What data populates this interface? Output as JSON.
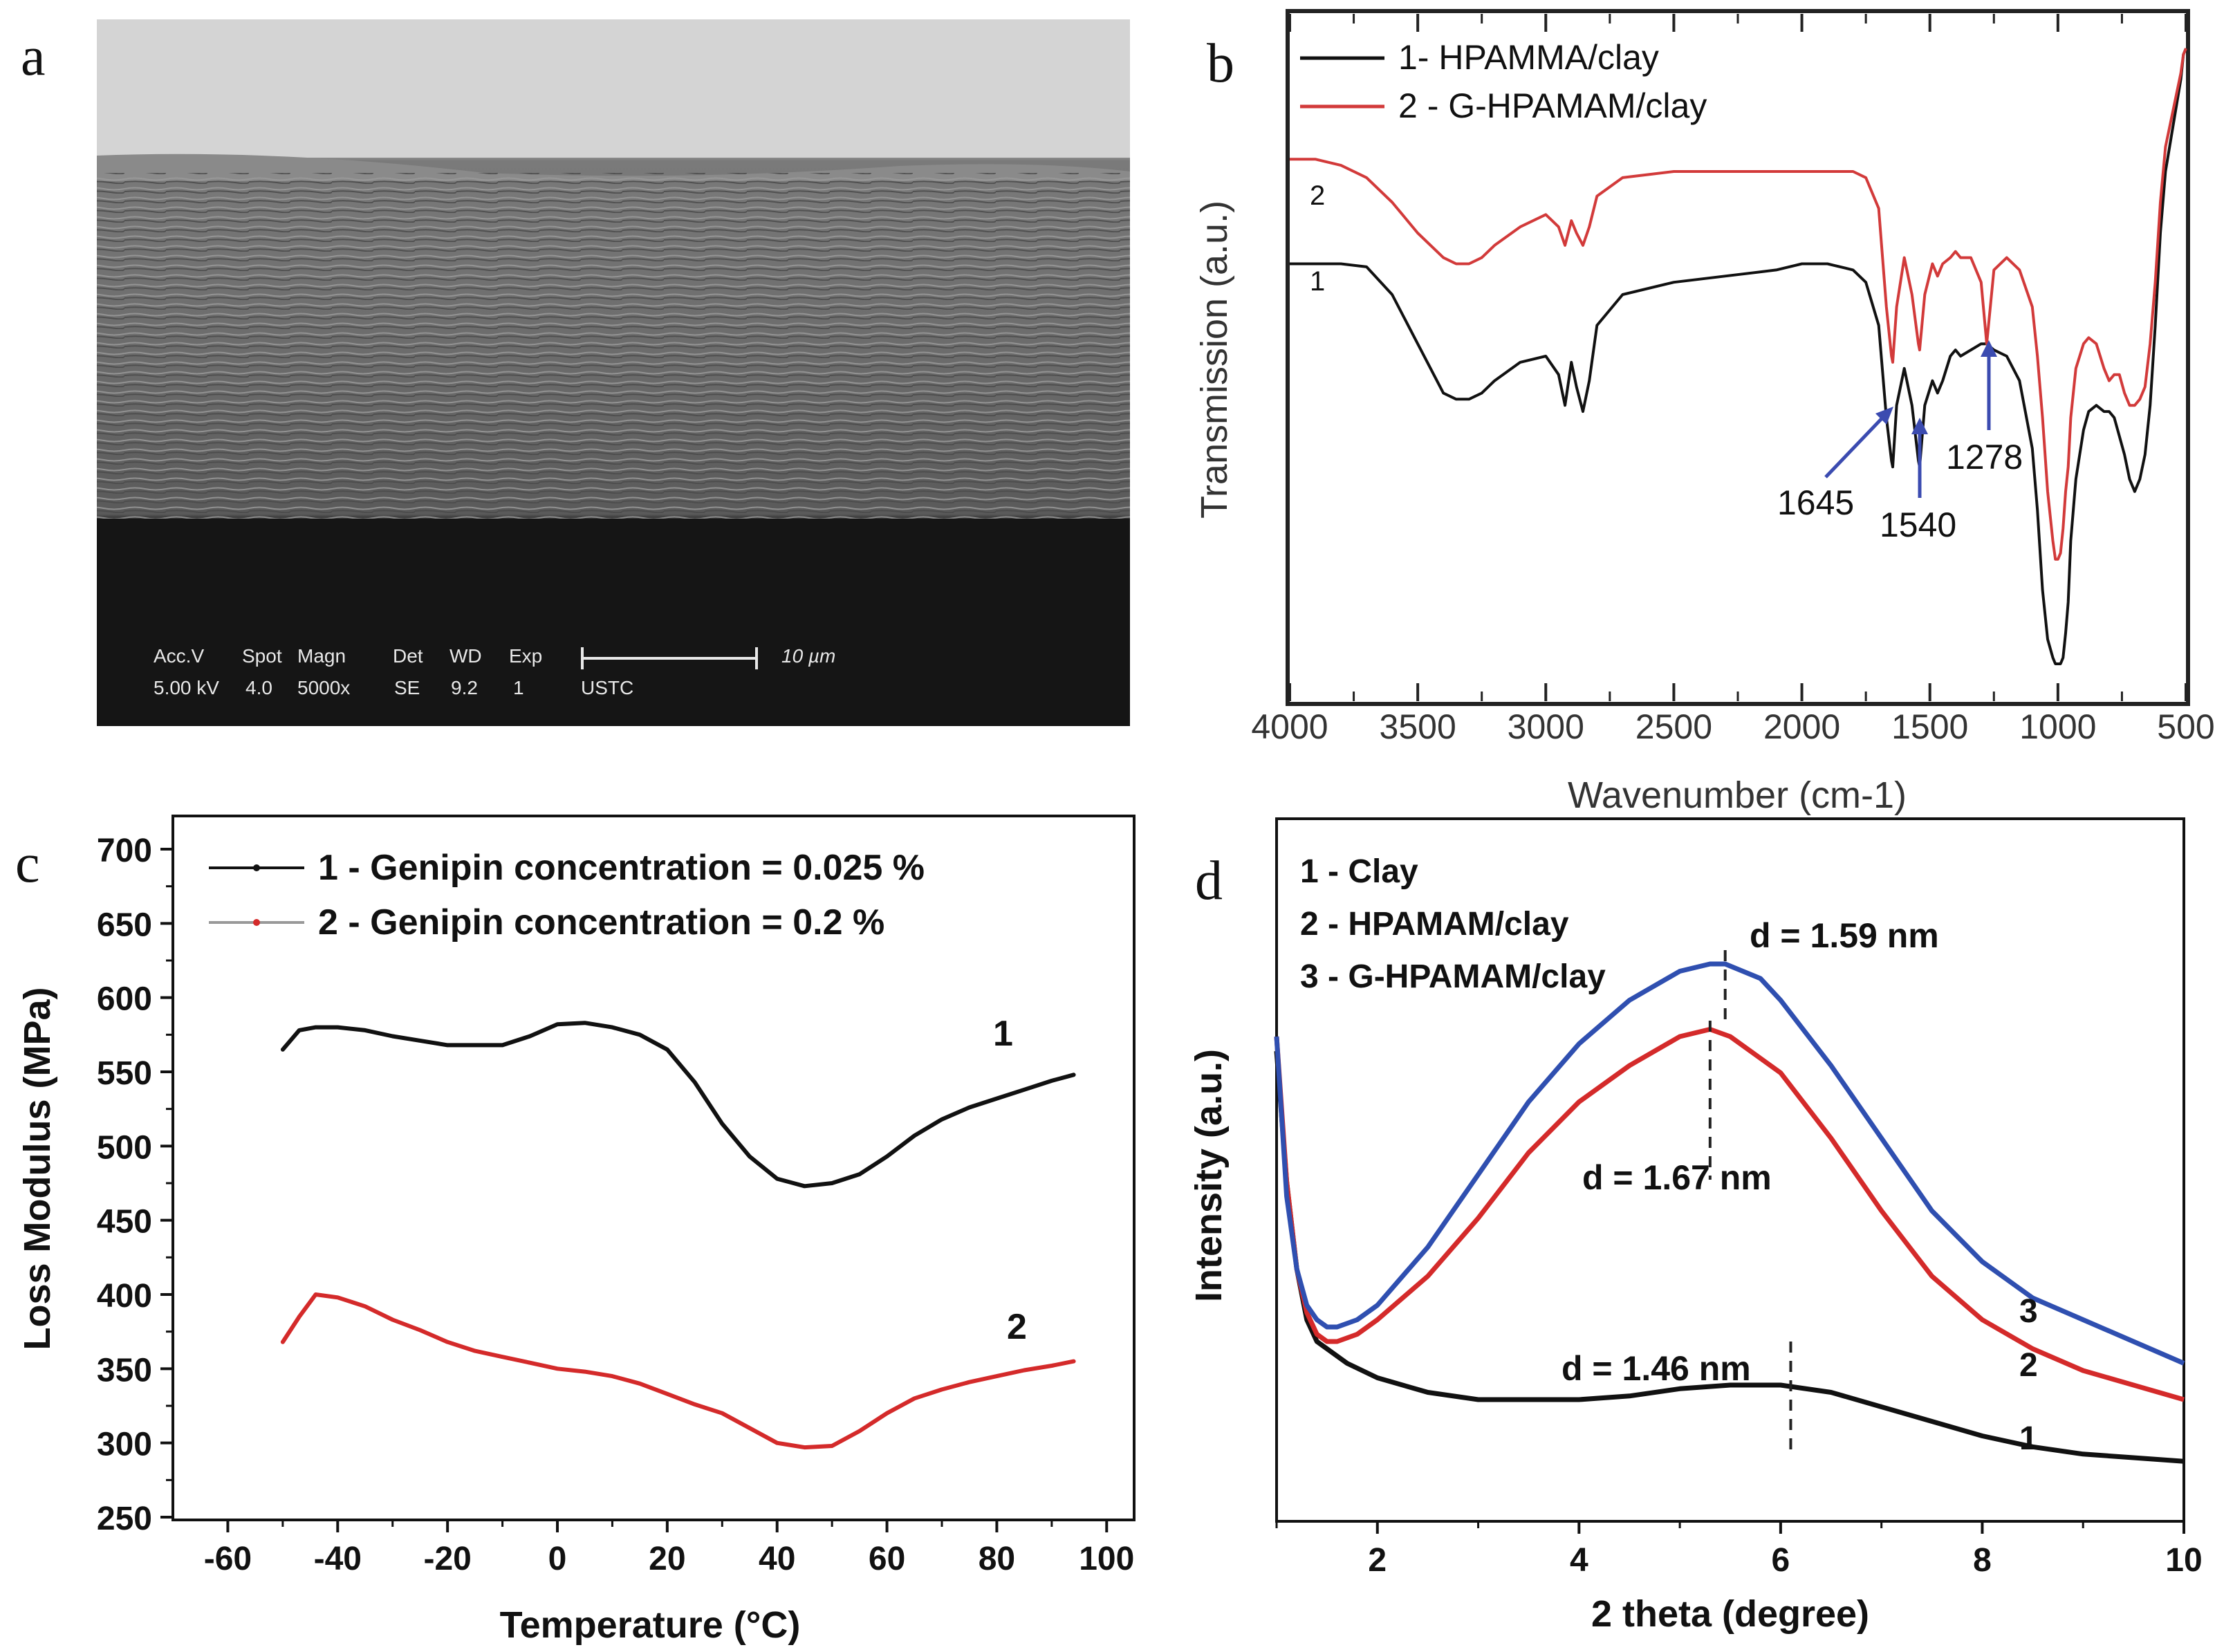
{
  "panel_labels": {
    "a": "a",
    "b": "b",
    "c": "c",
    "d": "d"
  },
  "sem": {
    "header": [
      "Acc.V",
      "Spot",
      "Magn",
      "Det",
      "WD",
      "Exp"
    ],
    "values": [
      "5.00 kV",
      "4.0",
      "5000x",
      "SE",
      "9.2",
      "1"
    ],
    "scalebar_label": "10 µm",
    "institution": "USTC"
  },
  "colors": {
    "black": "#111111",
    "red": "#d42a2a",
    "blue": "#2f4fb0",
    "ir_red": "#d23a3a",
    "annotation_blue": "#3b4bb0"
  },
  "chart_data": [
    {
      "id": "b",
      "type": "line",
      "title": "",
      "xlabel": "Wavenumber (cm-1)",
      "ylabel": "Transmission (a.u.)",
      "xlim": [
        4000,
        500
      ],
      "ylim": [
        0,
        1
      ],
      "xticks": [
        4000,
        3500,
        3000,
        2500,
        2000,
        1500,
        1000,
        500
      ],
      "legend": [
        "1- HPAMMA/clay",
        "2 - G-HPAMAM/clay"
      ],
      "legend_position": "top-left",
      "curve_labels": [
        "1",
        "2"
      ],
      "annotations": [
        "1645",
        "1540",
        "1278"
      ],
      "annotation_x": [
        1645,
        1540,
        1278
      ],
      "series": [
        {
          "name": "1- HPAMMA/clay",
          "x": [
            4000,
            3900,
            3800,
            3700,
            3600,
            3500,
            3400,
            3350,
            3300,
            3250,
            3200,
            3100,
            3000,
            2950,
            2925,
            2900,
            2880,
            2855,
            2830,
            2800,
            2700,
            2500,
            2300,
            2100,
            2000,
            1900,
            1800,
            1750,
            1700,
            1670,
            1650,
            1645,
            1630,
            1600,
            1570,
            1545,
            1540,
            1520,
            1490,
            1470,
            1450,
            1420,
            1400,
            1380,
            1340,
            1300,
            1278,
            1250,
            1200,
            1150,
            1100,
            1080,
            1060,
            1040,
            1020,
            1010,
            1000,
            990,
            980,
            970,
            960,
            950,
            930,
            900,
            880,
            850,
            820,
            800,
            780,
            760,
            740,
            720,
            700,
            680,
            660,
            640,
            620,
            600,
            580,
            560,
            540,
            520,
            510,
            500
          ],
          "y": [
            0.65,
            0.65,
            0.65,
            0.645,
            0.6,
            0.52,
            0.44,
            0.43,
            0.43,
            0.44,
            0.46,
            0.49,
            0.5,
            0.47,
            0.42,
            0.49,
            0.45,
            0.41,
            0.46,
            0.55,
            0.6,
            0.62,
            0.63,
            0.64,
            0.65,
            0.65,
            0.64,
            0.62,
            0.55,
            0.4,
            0.33,
            0.32,
            0.42,
            0.48,
            0.42,
            0.33,
            0.32,
            0.42,
            0.46,
            0.44,
            0.46,
            0.5,
            0.51,
            0.5,
            0.51,
            0.52,
            0.52,
            0.51,
            0.5,
            0.46,
            0.35,
            0.25,
            0.12,
            0.04,
            0.01,
            0.0,
            0.0,
            0.0,
            0.01,
            0.05,
            0.1,
            0.2,
            0.3,
            0.38,
            0.41,
            0.42,
            0.41,
            0.41,
            0.4,
            0.37,
            0.34,
            0.3,
            0.28,
            0.3,
            0.34,
            0.42,
            0.55,
            0.7,
            0.8,
            0.85,
            0.9,
            0.95,
            0.99,
            1.0
          ]
        },
        {
          "name": "2 - G-HPAMAM/clay",
          "x": [
            4000,
            3900,
            3800,
            3700,
            3600,
            3500,
            3400,
            3350,
            3300,
            3250,
            3200,
            3100,
            3000,
            2950,
            2925,
            2900,
            2880,
            2855,
            2830,
            2800,
            2700,
            2500,
            2300,
            2100,
            2000,
            1900,
            1800,
            1750,
            1700,
            1670,
            1650,
            1645,
            1630,
            1600,
            1570,
            1545,
            1540,
            1520,
            1490,
            1470,
            1450,
            1420,
            1400,
            1380,
            1340,
            1300,
            1278,
            1250,
            1200,
            1150,
            1100,
            1080,
            1060,
            1040,
            1020,
            1010,
            1000,
            990,
            980,
            970,
            960,
            950,
            930,
            900,
            880,
            850,
            820,
            800,
            780,
            760,
            740,
            720,
            700,
            680,
            660,
            640,
            620,
            600,
            580,
            560,
            540,
            520,
            510,
            500
          ],
          "y": [
            0.82,
            0.82,
            0.81,
            0.79,
            0.75,
            0.7,
            0.66,
            0.65,
            0.65,
            0.66,
            0.68,
            0.71,
            0.73,
            0.71,
            0.68,
            0.72,
            0.7,
            0.68,
            0.71,
            0.76,
            0.79,
            0.8,
            0.8,
            0.8,
            0.8,
            0.8,
            0.8,
            0.79,
            0.74,
            0.58,
            0.5,
            0.49,
            0.58,
            0.66,
            0.6,
            0.52,
            0.51,
            0.6,
            0.65,
            0.63,
            0.65,
            0.66,
            0.67,
            0.66,
            0.66,
            0.62,
            0.52,
            0.64,
            0.66,
            0.64,
            0.58,
            0.5,
            0.4,
            0.28,
            0.2,
            0.17,
            0.17,
            0.18,
            0.22,
            0.28,
            0.32,
            0.4,
            0.48,
            0.52,
            0.53,
            0.52,
            0.48,
            0.46,
            0.47,
            0.47,
            0.44,
            0.42,
            0.42,
            0.43,
            0.45,
            0.52,
            0.62,
            0.75,
            0.84,
            0.88,
            0.92,
            0.96,
            0.99,
            1.0
          ]
        }
      ]
    },
    {
      "id": "c",
      "type": "line",
      "title": "",
      "xlabel": "Temperature (°C)",
      "ylabel": "Loss Modulus (MPa)",
      "xlim": [
        -70,
        105
      ],
      "ylim": [
        250,
        720
      ],
      "xticks": [
        -60,
        -40,
        -20,
        0,
        20,
        40,
        60,
        80,
        100
      ],
      "yticks": [
        250,
        300,
        350,
        400,
        450,
        500,
        550,
        600,
        650,
        700
      ],
      "legend": [
        "1 - Genipin concentration = 0.025 %",
        "2 - Genipin concentration = 0.2 %"
      ],
      "legend_position": "top-left",
      "curve_labels": [
        "1",
        "2"
      ],
      "series": [
        {
          "name": "1 - Genipin concentration = 0.025 %",
          "x": [
            -50,
            -47,
            -44,
            -40,
            -35,
            -30,
            -25,
            -20,
            -15,
            -10,
            -5,
            0,
            5,
            10,
            15,
            20,
            25,
            30,
            35,
            40,
            45,
            50,
            55,
            60,
            65,
            70,
            75,
            80,
            85,
            90,
            94
          ],
          "y": [
            565,
            578,
            580,
            580,
            578,
            574,
            571,
            568,
            568,
            568,
            574,
            582,
            583,
            580,
            575,
            565,
            543,
            515,
            493,
            478,
            473,
            475,
            481,
            493,
            507,
            518,
            526,
            532,
            538,
            544,
            548
          ]
        },
        {
          "name": "2 - Genipin concentration = 0.2 %",
          "x": [
            -50,
            -47,
            -44,
            -40,
            -35,
            -30,
            -25,
            -20,
            -15,
            -10,
            -5,
            0,
            5,
            10,
            15,
            20,
            25,
            30,
            35,
            40,
            45,
            50,
            55,
            60,
            65,
            70,
            75,
            80,
            85,
            90,
            94
          ],
          "y": [
            368,
            385,
            400,
            398,
            392,
            383,
            376,
            368,
            362,
            358,
            354,
            350,
            348,
            345,
            340,
            333,
            326,
            320,
            310,
            300,
            297,
            298,
            308,
            320,
            330,
            336,
            341,
            345,
            349,
            352,
            355
          ]
        }
      ]
    },
    {
      "id": "d",
      "type": "line",
      "title": "",
      "xlabel": "2 theta (degree)",
      "ylabel": "Intensity (a.u.)",
      "xlim": [
        1,
        10
      ],
      "ylim": [
        0,
        1
      ],
      "xticks": [
        2,
        4,
        6,
        8,
        10
      ],
      "legend": [
        "1 - Clay",
        "2 - HPAMAM/clay",
        "3 - G-HPAMAM/clay"
      ],
      "legend_position": "top-left",
      "curve_labels": [
        "1",
        "2",
        "3"
      ],
      "annotations": [
        "d = 1.59 nm",
        "d = 1.67 nm",
        "d = 1.46 nm"
      ],
      "peak_x": [
        5.45,
        5.3,
        6.1
      ],
      "series": [
        {
          "name": "1 - Clay",
          "x": [
            1.0,
            1.1,
            1.2,
            1.3,
            1.4,
            1.5,
            1.7,
            2.0,
            2.5,
            3.0,
            3.5,
            4.0,
            4.5,
            5.0,
            5.5,
            6.0,
            6.5,
            7.0,
            7.5,
            8.0,
            8.5,
            9.0,
            9.5,
            10.0
          ],
          "y": [
            0.6,
            0.42,
            0.3,
            0.23,
            0.2,
            0.19,
            0.17,
            0.15,
            0.13,
            0.12,
            0.12,
            0.12,
            0.125,
            0.135,
            0.14,
            0.14,
            0.13,
            0.11,
            0.09,
            0.07,
            0.055,
            0.045,
            0.04,
            0.035
          ]
        },
        {
          "name": "2 - HPAMAM/clay",
          "x": [
            1.0,
            1.1,
            1.2,
            1.3,
            1.4,
            1.5,
            1.6,
            1.8,
            2.0,
            2.5,
            3.0,
            3.5,
            4.0,
            4.5,
            5.0,
            5.3,
            5.5,
            6.0,
            6.5,
            7.0,
            7.5,
            8.0,
            8.5,
            9.0,
            9.5,
            10.0
          ],
          "y": [
            0.62,
            0.42,
            0.3,
            0.24,
            0.21,
            0.2,
            0.2,
            0.21,
            0.23,
            0.29,
            0.37,
            0.46,
            0.53,
            0.58,
            0.62,
            0.63,
            0.62,
            0.57,
            0.48,
            0.38,
            0.29,
            0.23,
            0.19,
            0.16,
            0.14,
            0.12
          ]
        },
        {
          "name": "3 - G-HPAMAM/clay",
          "x": [
            1.0,
            1.1,
            1.2,
            1.3,
            1.4,
            1.5,
            1.6,
            1.8,
            2.0,
            2.5,
            3.0,
            3.5,
            4.0,
            4.5,
            5.0,
            5.3,
            5.45,
            5.8,
            6.0,
            6.5,
            7.0,
            7.5,
            8.0,
            8.5,
            9.0,
            9.5,
            10.0
          ],
          "y": [
            0.62,
            0.4,
            0.3,
            0.25,
            0.23,
            0.22,
            0.22,
            0.23,
            0.25,
            0.33,
            0.43,
            0.53,
            0.61,
            0.67,
            0.71,
            0.72,
            0.72,
            0.7,
            0.67,
            0.58,
            0.48,
            0.38,
            0.31,
            0.26,
            0.23,
            0.2,
            0.17
          ]
        }
      ]
    }
  ]
}
